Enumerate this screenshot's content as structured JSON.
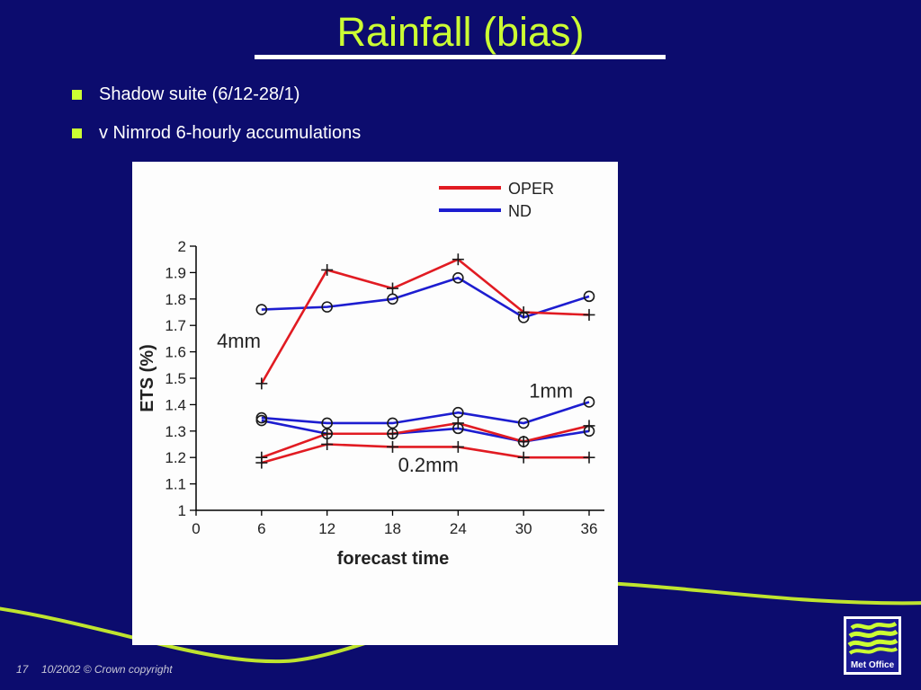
{
  "slide": {
    "title": "Rainfall (bias)",
    "bullets": [
      {
        "label": "Shadow suite (6/12-28/1)"
      },
      {
        "label": "v Nimrod 6-hourly accumulations"
      }
    ],
    "footer": {
      "page_number": "17",
      "copyright": "10/2002 © Crown copyright"
    },
    "logo_text": "Met Office"
  },
  "colors": {
    "background": "#0c0c6e",
    "title_green": "#ccff33",
    "curve_green": "#bfe42f",
    "oper_red": "#e11b22",
    "nd_blue": "#1d1dd0",
    "panel_white": "#fdfdfd"
  },
  "chart_data": {
    "type": "line",
    "xlabel": "forecast time",
    "ylabel": "ETS (%)",
    "xlim": [
      0,
      36
    ],
    "ylim": [
      1,
      2
    ],
    "x_ticks": [
      0,
      6,
      12,
      18,
      24,
      30,
      36
    ],
    "y_ticks": [
      {
        "v": 2,
        "label": "2"
      },
      {
        "v": 1.9,
        "label": "1.9"
      },
      {
        "v": 1.8,
        "label": "1.8"
      },
      {
        "v": 1.7,
        "label": "1.7"
      },
      {
        "v": 1.6,
        "label": "1.6"
      },
      {
        "v": 1.5,
        "label": "1.5"
      },
      {
        "v": 1.4,
        "label": "1.4"
      },
      {
        "v": 1.3,
        "label": "1.3"
      },
      {
        "v": 1.2,
        "label": "1.2"
      },
      {
        "v": 1.1,
        "label": "1.1"
      },
      {
        "v": 1,
        "label": "1"
      }
    ],
    "x": [
      6,
      12,
      18,
      24,
      30,
      36
    ],
    "legend": [
      {
        "label": "OPER",
        "color": "#e11b22"
      },
      {
        "label": "ND",
        "color": "#1d1dd0"
      }
    ],
    "series": [
      {
        "name": "ND 4mm",
        "legend": "ND",
        "color": "#1d1dd0",
        "marker": "circle",
        "values": [
          1.76,
          1.77,
          1.8,
          1.88,
          1.73,
          1.81
        ]
      },
      {
        "name": "ND 1mm",
        "legend": "ND",
        "color": "#1d1dd0",
        "marker": "circle",
        "values": [
          1.35,
          1.33,
          1.33,
          1.37,
          1.33,
          1.41
        ]
      },
      {
        "name": "ND 0.2mm",
        "legend": "ND",
        "color": "#1d1dd0",
        "marker": "circle",
        "values": [
          1.34,
          1.29,
          1.29,
          1.31,
          1.26,
          1.3
        ]
      },
      {
        "name": "OPER 4mm",
        "legend": "OPER",
        "color": "#e11b22",
        "marker": "plus",
        "values": [
          1.48,
          1.91,
          1.84,
          1.95,
          1.75,
          1.74
        ]
      },
      {
        "name": "OPER 1mm",
        "legend": "OPER",
        "color": "#e11b22",
        "marker": "plus",
        "values": [
          1.2,
          1.29,
          1.29,
          1.33,
          1.26,
          1.32
        ]
      },
      {
        "name": "OPER 0.2mm",
        "legend": "OPER",
        "color": "#e11b22",
        "marker": "plus",
        "values": [
          1.18,
          1.25,
          1.24,
          1.24,
          1.2,
          1.2
        ]
      }
    ],
    "annotations": [
      {
        "text": "4mm",
        "x": 1.9,
        "y": 1.64
      },
      {
        "text": "1mm",
        "x": 30.5,
        "y": 1.45
      },
      {
        "text": "0.2mm",
        "x": 18.5,
        "y": 1.17
      }
    ],
    "grid": false,
    "legend_position": "top-right"
  }
}
